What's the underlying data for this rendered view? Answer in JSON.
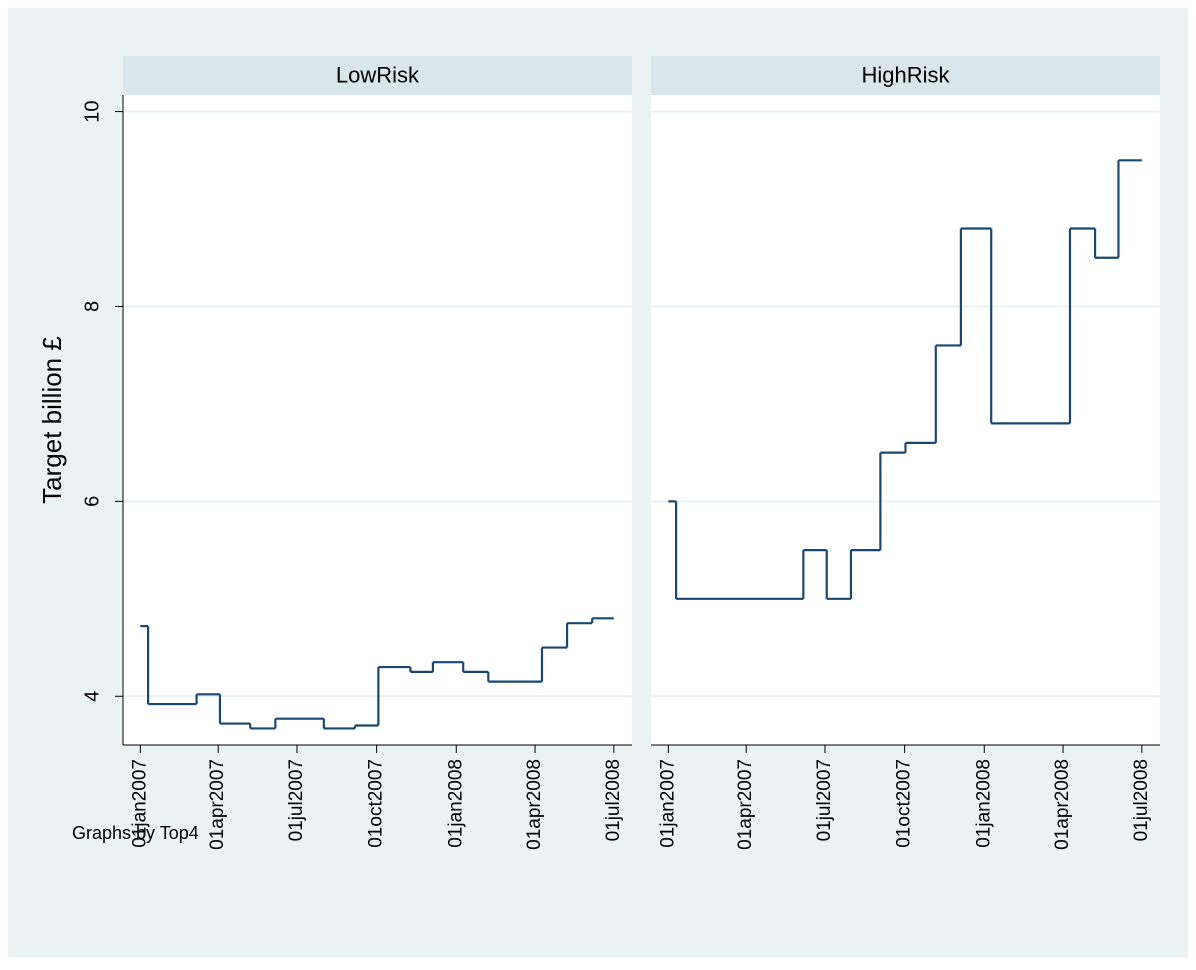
{
  "note": "Graphs by Top4",
  "chart_data": [
    {
      "type": "line",
      "step": "post",
      "title": "LowRisk",
      "ylabel": "Target billion £",
      "x": [
        "2007-01-01",
        "2007-01-10",
        "2007-03-07",
        "2007-04-03",
        "2007-05-08",
        "2007-06-06",
        "2007-08-01",
        "2007-09-06",
        "2007-10-03",
        "2007-11-09",
        "2007-12-05",
        "2008-01-09",
        "2008-02-07",
        "2008-04-09",
        "2008-05-08",
        "2008-06-06",
        "2008-07-01"
      ],
      "series": [
        {
          "color": "#1a476f",
          "values": [
            4.72,
            3.92,
            4.02,
            3.72,
            3.67,
            3.77,
            3.67,
            3.7,
            4.3,
            4.25,
            4.35,
            4.25,
            4.15,
            4.5,
            4.75,
            4.8,
            4.8
          ]
        }
      ],
      "xlim": [
        "2006-12-12",
        "2008-07-22"
      ],
      "xticks": [
        {
          "value": "2007-01-01",
          "label": "01jan2007"
        },
        {
          "value": "2007-04-01",
          "label": "01apr2007"
        },
        {
          "value": "2007-07-01",
          "label": "01jul2007"
        },
        {
          "value": "2007-10-01",
          "label": "01oct2007"
        },
        {
          "value": "2008-01-01",
          "label": "01jan2008"
        },
        {
          "value": "2008-04-01",
          "label": "01apr2008"
        },
        {
          "value": "2008-07-01",
          "label": "01jul2008"
        }
      ],
      "ylim": [
        3.5,
        10.17
      ],
      "yticks": [
        4,
        6,
        8,
        10
      ],
      "grid": true
    },
    {
      "type": "line",
      "step": "post",
      "title": "HighRisk",
      "x": [
        "2007-01-01",
        "2007-01-10",
        "2007-06-06",
        "2007-07-03",
        "2007-07-31",
        "2007-09-03",
        "2007-10-02",
        "2007-11-06",
        "2007-12-05",
        "2008-01-09",
        "2008-04-09",
        "2008-05-08",
        "2008-06-04",
        "2008-07-01"
      ],
      "series": [
        {
          "color": "#1a476f",
          "values": [
            6.0,
            5.0,
            5.5,
            5.0,
            5.5,
            6.5,
            6.6,
            7.6,
            8.8,
            6.8,
            8.8,
            8.5,
            9.5,
            9.5
          ]
        }
      ],
      "xlim": [
        "2006-12-12",
        "2008-07-22"
      ],
      "xticks": [
        {
          "value": "2007-01-01",
          "label": "01jan2007"
        },
        {
          "value": "2007-04-01",
          "label": "01apr2007"
        },
        {
          "value": "2007-07-01",
          "label": "01jul2007"
        },
        {
          "value": "2007-10-01",
          "label": "01oct2007"
        },
        {
          "value": "2008-01-01",
          "label": "01jan2008"
        },
        {
          "value": "2008-04-01",
          "label": "01apr2008"
        },
        {
          "value": "2008-07-01",
          "label": "01jul2008"
        }
      ],
      "ylim": [
        3.5,
        10.17
      ],
      "yticks": [
        4,
        6,
        8,
        10
      ],
      "grid": true
    }
  ]
}
